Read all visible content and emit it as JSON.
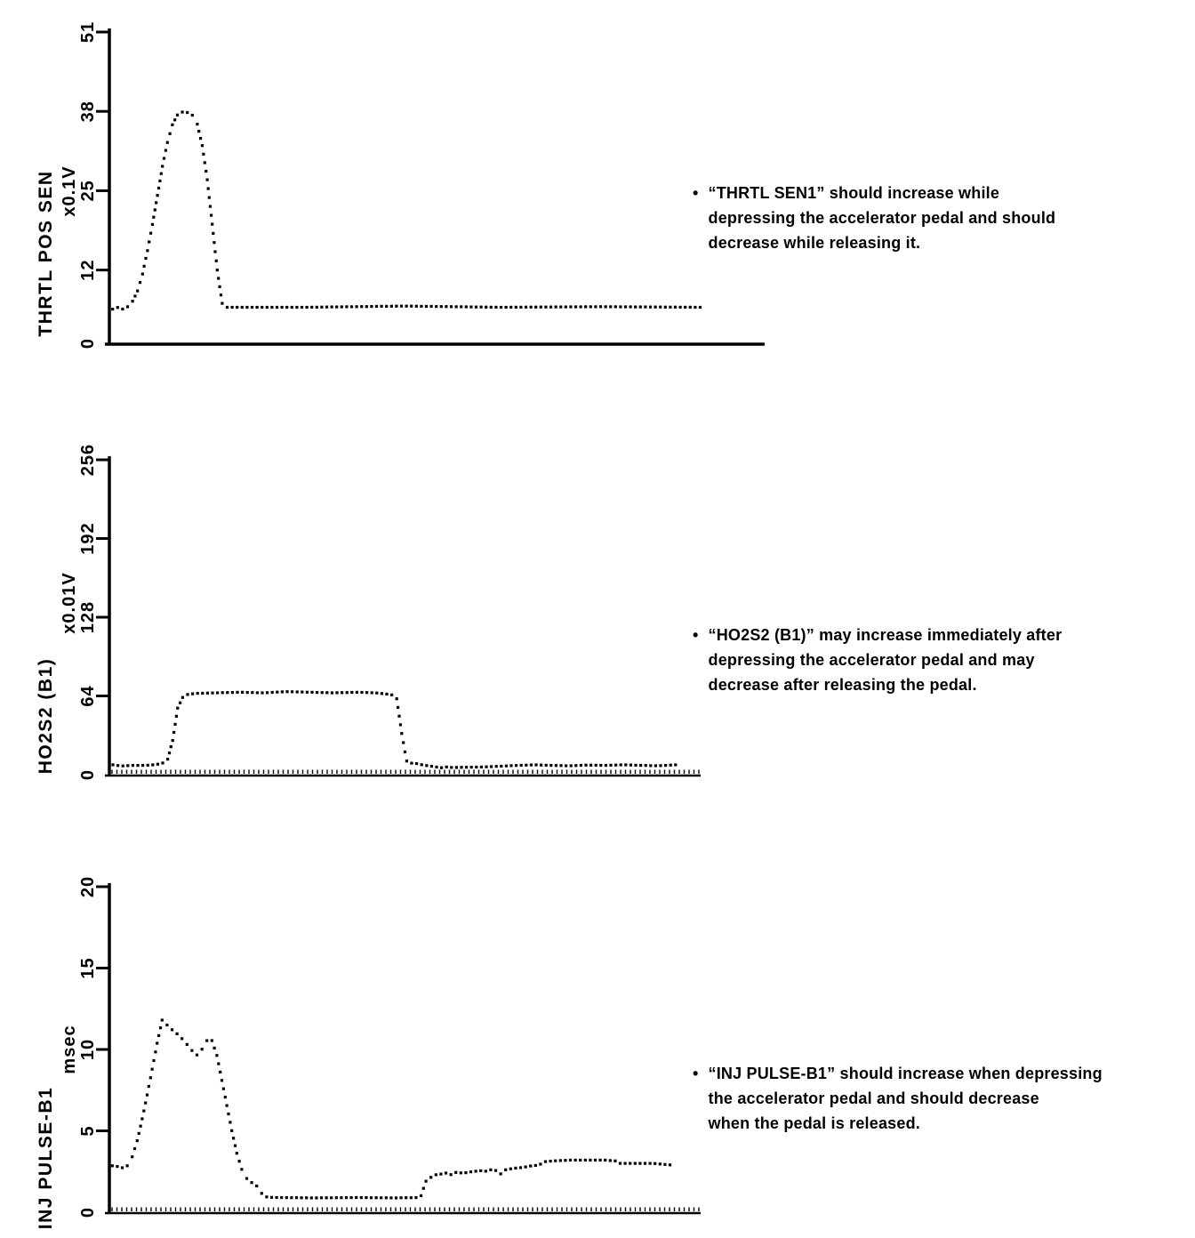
{
  "page": {
    "background": "#ffffff",
    "ink": "#000000"
  },
  "ui": {
    "bullet": "•"
  },
  "chart_data": [
    {
      "type": "scatter",
      "title": "THRTL POS SEN",
      "unit": "x0.1V",
      "xlabel": "",
      "ylabel": "THRTL POS SEN (x0.1V)",
      "ylim": [
        0,
        51
      ],
      "yticks": [
        0,
        12,
        25,
        38,
        51
      ],
      "x_axis_style": "plain",
      "grid": false,
      "dot_color": "#000000",
      "annotation": "“THRTL SEN1” should increase while\ndepressing the accelerator pedal and should\ndecrease while releasing it.",
      "points": [
        [
          0.005,
          5.6
        ],
        [
          0.012,
          5.9
        ],
        [
          0.02,
          5.6
        ],
        [
          0.028,
          6.0
        ],
        [
          0.034,
          6.6
        ],
        [
          0.042,
          8.2
        ],
        [
          0.05,
          11.0
        ],
        [
          0.058,
          15.0
        ],
        [
          0.066,
          19.5
        ],
        [
          0.074,
          24.5
        ],
        [
          0.082,
          29.5
        ],
        [
          0.09,
          33.5
        ],
        [
          0.097,
          36.0
        ],
        [
          0.104,
          37.4
        ],
        [
          0.112,
          37.9
        ],
        [
          0.12,
          37.8
        ],
        [
          0.128,
          37.3
        ],
        [
          0.135,
          35.8
        ],
        [
          0.142,
          32.5
        ],
        [
          0.149,
          27.5
        ],
        [
          0.156,
          21.0
        ],
        [
          0.162,
          14.5
        ],
        [
          0.168,
          9.5
        ],
        [
          0.173,
          6.3
        ],
        [
          0.18,
          5.9
        ],
        [
          0.3,
          5.9
        ],
        [
          0.45,
          6.1
        ],
        [
          0.6,
          5.9
        ],
        [
          0.75,
          6.0
        ],
        [
          0.905,
          5.9
        ]
      ]
    },
    {
      "type": "scatter",
      "title": "HO2S2 (B1)",
      "unit": "x0.01V",
      "xlabel": "",
      "ylabel": "HO2S2 (B1) (x0.01V)",
      "ylim": [
        0,
        256
      ],
      "yticks": [
        0,
        64,
        128,
        192,
        256
      ],
      "x_axis_style": "ruler",
      "grid": false,
      "dot_color": "#000000",
      "annotation": "“HO2S2 (B1)” may increase immediately after\ndepressing the accelerator pedal and may\ndecrease after releasing the pedal.",
      "points": [
        [
          0.006,
          8
        ],
        [
          0.02,
          7
        ],
        [
          0.04,
          7.5
        ],
        [
          0.06,
          7.5
        ],
        [
          0.075,
          8
        ],
        [
          0.088,
          9
        ],
        [
          0.096,
          10.5
        ],
        [
          0.102,
          15
        ],
        [
          0.107,
          27
        ],
        [
          0.111,
          42
        ],
        [
          0.116,
          55
        ],
        [
          0.122,
          62
        ],
        [
          0.13,
          65
        ],
        [
          0.145,
          66
        ],
        [
          0.18,
          66.5
        ],
        [
          0.22,
          67
        ],
        [
          0.26,
          66.5
        ],
        [
          0.3,
          67.5
        ],
        [
          0.34,
          67
        ],
        [
          0.38,
          66.5
        ],
        [
          0.42,
          67
        ],
        [
          0.45,
          66.5
        ],
        [
          0.47,
          65.5
        ],
        [
          0.483,
          64.5
        ],
        [
          0.489,
          60
        ],
        [
          0.4935,
          42
        ],
        [
          0.497,
          24
        ],
        [
          0.501,
          12
        ],
        [
          0.508,
          9.5
        ],
        [
          0.52,
          9
        ],
        [
          0.535,
          7.5
        ],
        [
          0.55,
          6.5
        ],
        [
          0.565,
          5.5
        ],
        [
          0.572,
          6.3
        ],
        [
          0.58,
          5.8
        ],
        [
          0.6,
          6
        ],
        [
          0.63,
          6.2
        ],
        [
          0.66,
          6.8
        ],
        [
          0.69,
          7.5
        ],
        [
          0.72,
          8
        ],
        [
          0.75,
          7.5
        ],
        [
          0.78,
          7.2
        ],
        [
          0.81,
          7.8
        ],
        [
          0.84,
          7.5
        ],
        [
          0.87,
          8
        ],
        [
          0.9,
          7.5
        ],
        [
          0.93,
          7.2
        ],
        [
          0.962,
          8
        ]
      ]
    },
    {
      "type": "scatter",
      "title": "INJ PULSE-B1",
      "unit": "msec",
      "xlabel": "",
      "ylabel": "INJ PULSE-B1 (msec)",
      "ylim": [
        0,
        20
      ],
      "yticks": [
        0,
        5,
        10,
        15,
        20
      ],
      "x_axis_style": "ruler",
      "grid": false,
      "dot_color": "#000000",
      "annotation": "“INJ PULSE-B1” should increase when depressing\nthe accelerator pedal and should decrease\nwhen the pedal is released.",
      "points": [
        [
          0.005,
          2.85
        ],
        [
          0.015,
          2.8
        ],
        [
          0.025,
          2.7
        ],
        [
          0.032,
          2.9
        ],
        [
          0.04,
          3.5
        ],
        [
          0.048,
          4.5
        ],
        [
          0.056,
          5.8
        ],
        [
          0.064,
          7.2
        ],
        [
          0.072,
          8.7
        ],
        [
          0.079,
          10.0
        ],
        [
          0.084,
          11.0
        ],
        [
          0.088,
          11.85
        ],
        [
          0.095,
          11.6
        ],
        [
          0.105,
          11.25
        ],
        [
          0.115,
          10.95
        ],
        [
          0.125,
          10.6
        ],
        [
          0.135,
          10.15
        ],
        [
          0.143,
          9.8
        ],
        [
          0.148,
          9.65
        ],
        [
          0.155,
          9.9
        ],
        [
          0.162,
          10.35
        ],
        [
          0.168,
          10.7
        ],
        [
          0.173,
          10.6
        ],
        [
          0.179,
          10.1
        ],
        [
          0.185,
          9.2
        ],
        [
          0.19,
          8.2
        ],
        [
          0.196,
          7.1
        ],
        [
          0.202,
          6.0
        ],
        [
          0.208,
          4.9
        ],
        [
          0.214,
          3.9
        ],
        [
          0.22,
          3.0
        ],
        [
          0.227,
          2.4
        ],
        [
          0.234,
          2.0
        ],
        [
          0.242,
          1.8
        ],
        [
          0.25,
          1.6
        ],
        [
          0.257,
          1.2
        ],
        [
          0.263,
          0.95
        ],
        [
          0.28,
          0.9
        ],
        [
          0.35,
          0.88
        ],
        [
          0.42,
          0.9
        ],
        [
          0.48,
          0.88
        ],
        [
          0.527,
          0.9
        ],
        [
          0.532,
          1.55
        ],
        [
          0.536,
          1.9
        ],
        [
          0.545,
          2.15
        ],
        [
          0.553,
          2.3
        ],
        [
          0.56,
          2.4
        ],
        [
          0.566,
          2.2
        ],
        [
          0.572,
          2.5
        ],
        [
          0.578,
          2.3
        ],
        [
          0.585,
          2.45
        ],
        [
          0.6,
          2.4
        ],
        [
          0.615,
          2.5
        ],
        [
          0.63,
          2.55
        ],
        [
          0.643,
          2.5
        ],
        [
          0.65,
          2.75
        ],
        [
          0.657,
          2.45
        ],
        [
          0.663,
          2.35
        ],
        [
          0.67,
          2.6
        ],
        [
          0.685,
          2.7
        ],
        [
          0.7,
          2.75
        ],
        [
          0.715,
          2.85
        ],
        [
          0.728,
          2.9
        ],
        [
          0.737,
          3.1
        ],
        [
          0.75,
          3.15
        ],
        [
          0.78,
          3.2
        ],
        [
          0.81,
          3.2
        ],
        [
          0.84,
          3.2
        ],
        [
          0.858,
          3.15
        ],
        [
          0.865,
          3.0
        ],
        [
          0.89,
          3.0
        ],
        [
          0.92,
          3.0
        ],
        [
          0.952,
          2.9
        ]
      ]
    }
  ]
}
